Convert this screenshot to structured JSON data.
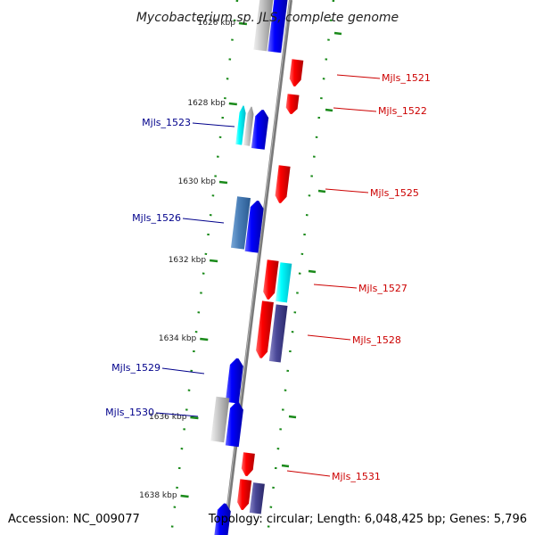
{
  "title": "Mycobacterium sp. JLS, complete genome",
  "accession": "Accession: NC_009077",
  "topology": "Topology: circular; Length: 6,048,425 bp; Genes: 5,796",
  "colors": {
    "backbone": "#7a7a7a",
    "forward_label": "#cc0000",
    "reverse_label": "#00008b",
    "tick": "#1a8a1a"
  },
  "ticks": [
    "1626 kbp",
    "1628 kbp",
    "1630 kbp",
    "1632 kbp",
    "1634 kbp",
    "1636 kbp",
    "1638 kbp"
  ],
  "gene_labels": {
    "Mjls_1521": "Mjls_1521",
    "Mjls_1522": "Mjls_1522",
    "Mjls_1523": "Mjls_1523",
    "Mjls_1525": "Mjls_1525",
    "Mjls_1526": "Mjls_1526",
    "Mjls_1527": "Mjls_1527",
    "Mjls_1528": "Mjls_1528",
    "Mjls_1529": "Mjls_1529",
    "Mjls_1530": "Mjls_1530",
    "Mjls_1531": "Mjls_1531"
  }
}
